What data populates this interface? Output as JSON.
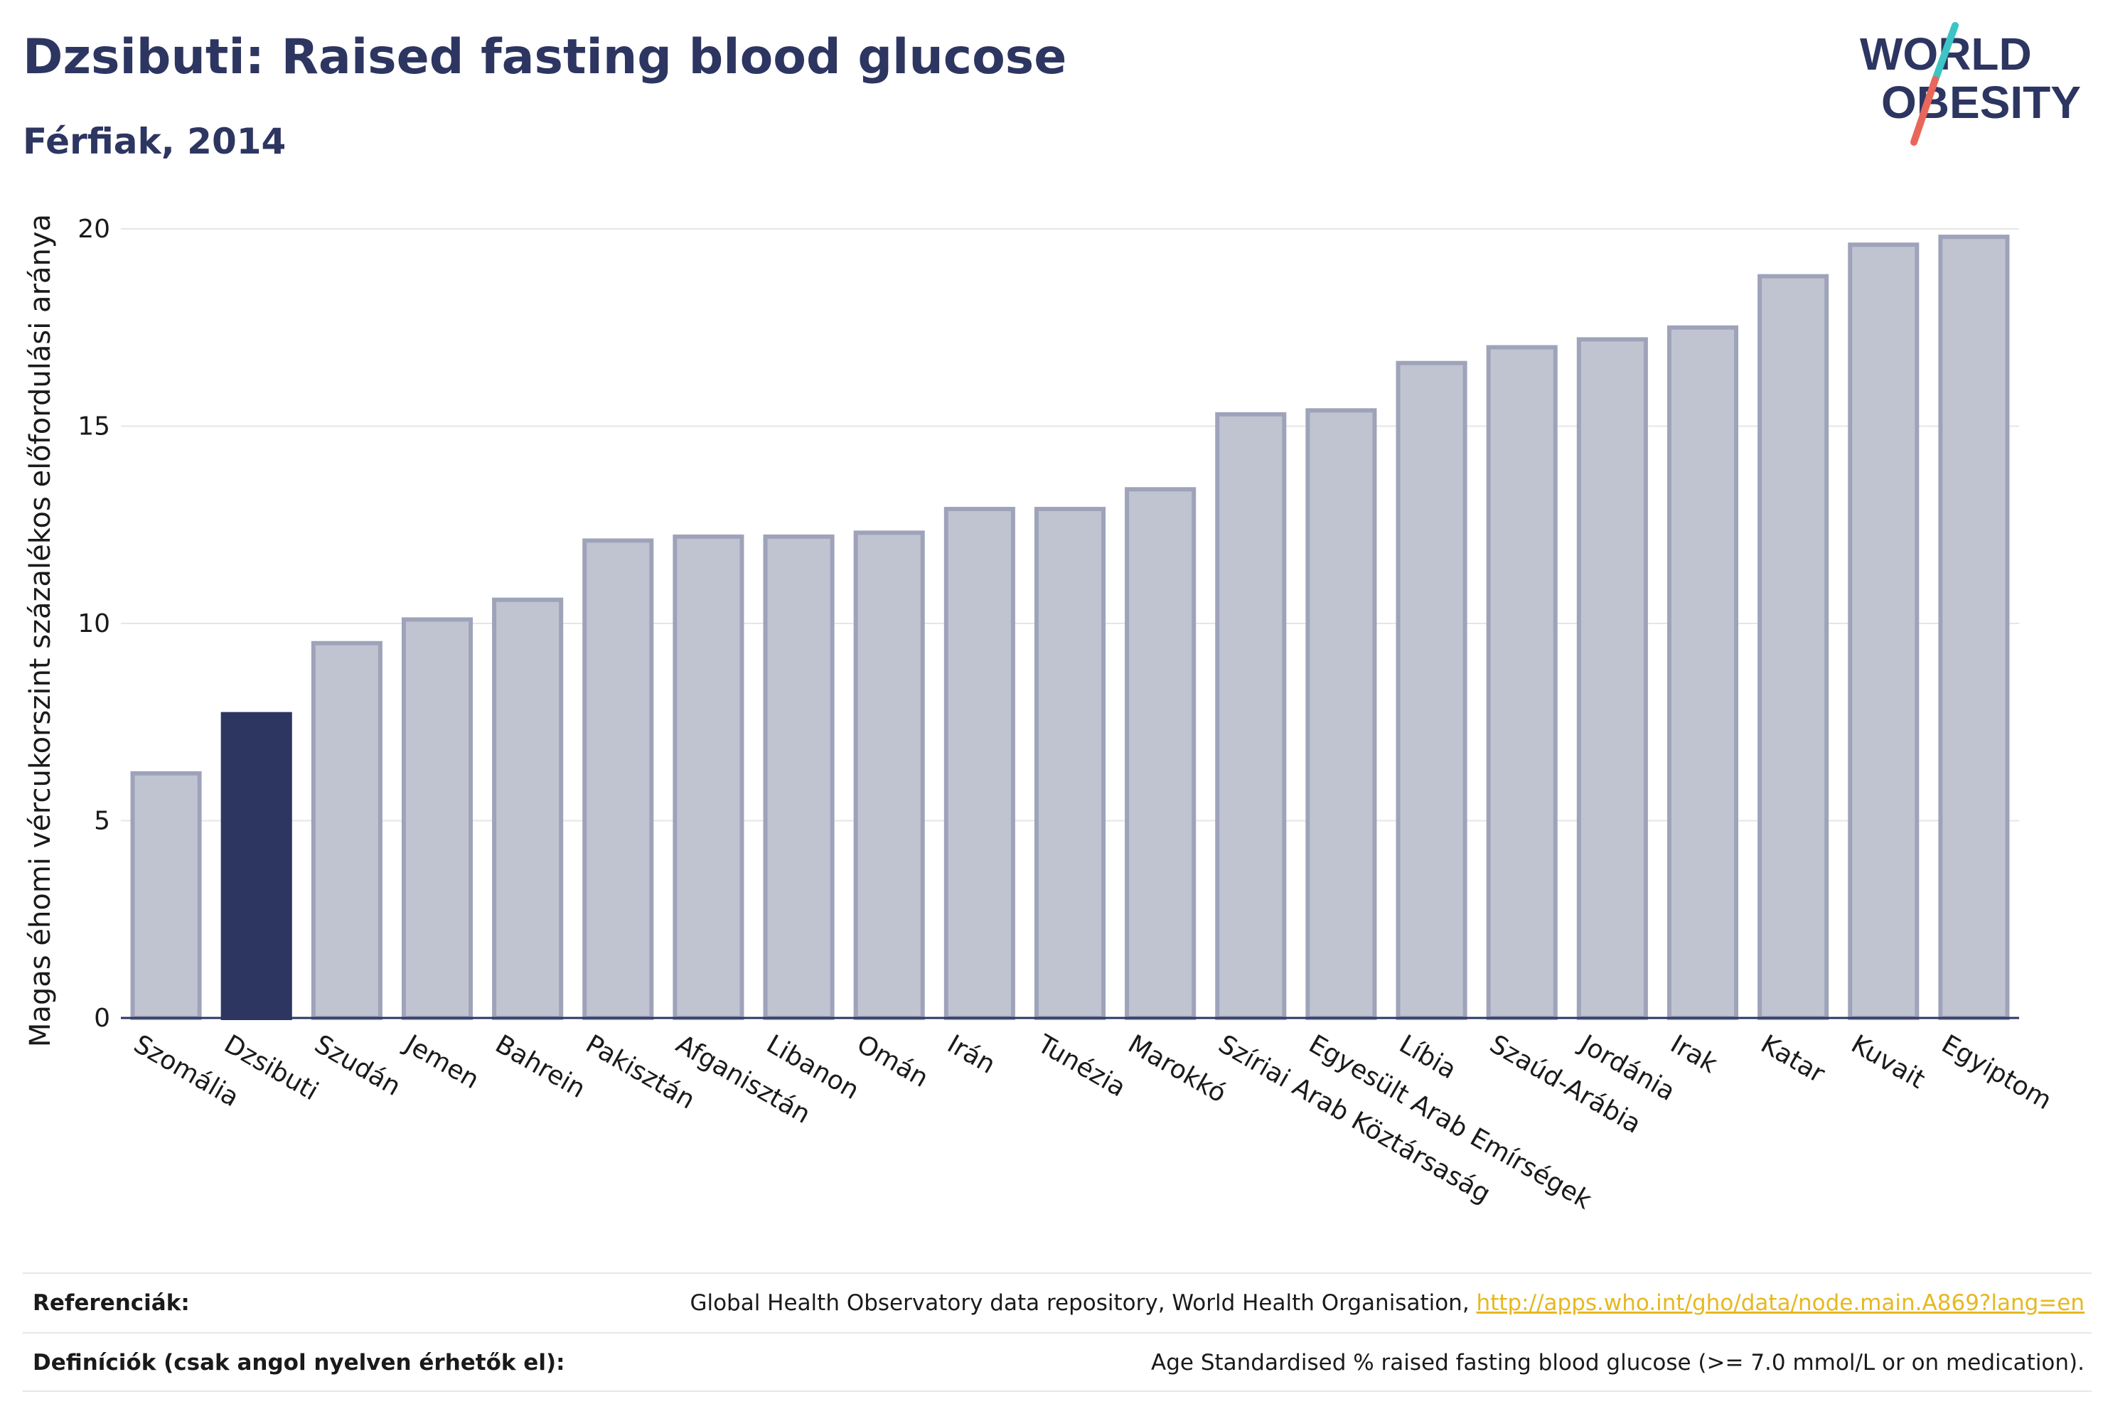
{
  "header": {
    "title": "Dzsibuti: Raised fasting blood glucose",
    "subtitle": "Férfiak, 2014"
  },
  "logo": {
    "line1": "WORLD",
    "line2": "OBESITY",
    "slash_colors": [
      "#3cc5c4",
      "#e8675a"
    ]
  },
  "colors": {
    "highlight": "#2d3561",
    "bar": "#c0c4d1",
    "bar_edge": "#9ea3ba",
    "grid": "#e6e6e6",
    "axis": "#2d3561"
  },
  "chart_data": {
    "type": "bar",
    "ylabel": "Magas éhomi vércukorszint százalékos előfordulási aránya",
    "ylim": [
      0,
      20
    ],
    "yticks": [
      0,
      5,
      10,
      15,
      20
    ],
    "grid": true,
    "highlight_category": "Dzsibuti",
    "categories": [
      "Szomália",
      "Dzsibuti",
      "Szudán",
      "Jemen",
      "Bahrein",
      "Pakisztán",
      "Afganisztán",
      "Libanon",
      "Omán",
      "Irán",
      "Tunézia",
      "Marokkó",
      "Szíriai Arab Köztársaság",
      "Egyesült Arab Emírségek",
      "Líbia",
      "Szaúd-Arábia",
      "Jordánia",
      "Irak",
      "Katar",
      "Kuvait",
      "Egyiptom"
    ],
    "values": [
      6.2,
      7.7,
      9.5,
      10.1,
      10.6,
      12.1,
      12.2,
      12.2,
      12.3,
      12.9,
      12.9,
      13.4,
      15.3,
      15.4,
      16.6,
      17.0,
      17.2,
      17.5,
      18.8,
      19.6,
      19.8
    ]
  },
  "footer": {
    "references_label": "Referenciák:",
    "references_text": "Global Health Observatory data repository, World Health Organisation, ",
    "references_link": "http://apps.who.int/gho/data/node.main.A869?lang=en",
    "definitions_label": "Definíciók (csak angol nyelven érhetők el):",
    "definitions_text": "Age Standardised % raised fasting blood glucose (>= 7.0 mmol/L or on medication)."
  }
}
